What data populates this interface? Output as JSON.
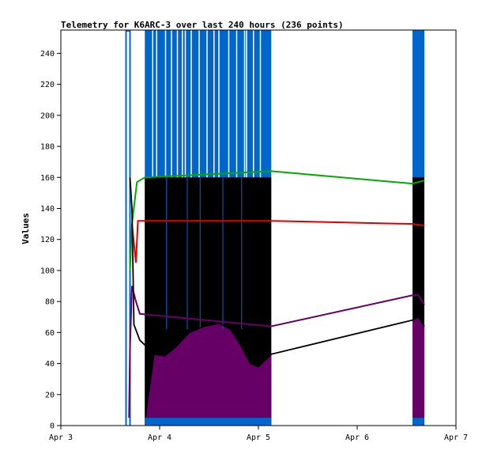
{
  "chart_data": {
    "type": "line",
    "title": "Telemetry for K6ARC-3 over last 240 hours (236 points)",
    "xlabel": "",
    "ylabel": "Values",
    "ylim": [
      0,
      255
    ],
    "xlim": [
      "Apr 3",
      "Apr 7"
    ],
    "y_ticks": [
      0,
      20,
      40,
      60,
      80,
      100,
      120,
      140,
      160,
      180,
      200,
      220,
      240
    ],
    "x_ticks": [
      "Apr 3",
      "Apr 4",
      "Apr 5",
      "Apr 6",
      "Apr 7"
    ],
    "grid": false,
    "colors": {
      "blue": "#0066cc",
      "black": "#000000",
      "purple": "#660066",
      "green": "#00aa00",
      "red": "#dd0000",
      "steelblue": "#0066cc"
    },
    "series": [
      {
        "color": "#0066cc",
        "segments": [
          [
            [
              3.66,
              0
            ],
            [
              3.66,
              255
            ],
            [
              3.7,
              255
            ],
            [
              3.7,
              0
            ]
          ],
          [
            [
              3.85,
              5
            ],
            [
              3.85,
              255
            ],
            [
              5.13,
              255
            ],
            [
              5.13,
              5
            ]
          ],
          [
            [
              6.56,
              5
            ],
            [
              6.56,
              255
            ],
            [
              6.68,
              255
            ],
            [
              6.68,
              5
            ]
          ]
        ],
        "band_low": [
          [
            3.85,
            0
          ],
          [
            5.13,
            5
          ]
        ],
        "band_low2": [
          [
            6.56,
            0
          ],
          [
            6.68,
            5
          ]
        ]
      },
      {
        "color": "#000000",
        "points": [
          [
            3.7,
            160
          ],
          [
            3.72,
            140
          ],
          [
            3.74,
            65
          ],
          [
            3.8,
            55
          ],
          [
            3.95,
            46
          ],
          [
            4.05,
            45
          ],
          [
            4.15,
            50
          ],
          [
            4.3,
            60
          ],
          [
            4.45,
            64
          ],
          [
            4.6,
            66
          ],
          [
            4.72,
            62
          ],
          [
            4.82,
            52
          ],
          [
            4.92,
            40
          ],
          [
            5.0,
            38
          ],
          [
            5.13,
            46
          ],
          [
            6.56,
            68
          ],
          [
            6.62,
            70
          ],
          [
            6.68,
            64
          ]
        ],
        "band": [
          [
            3.85,
            160
          ],
          [
            5.13,
            160
          ]
        ],
        "band2": [
          [
            6.56,
            160
          ],
          [
            6.68,
            160
          ]
        ]
      },
      {
        "color": "#660066",
        "points": [
          [
            3.69,
            5
          ],
          [
            3.7,
            50
          ],
          [
            3.72,
            90
          ],
          [
            3.76,
            80
          ],
          [
            3.8,
            72
          ],
          [
            5.13,
            64
          ],
          [
            6.56,
            84
          ],
          [
            6.62,
            84
          ],
          [
            6.68,
            78
          ]
        ]
      },
      {
        "color": "#00aa00",
        "points": [
          [
            3.7,
            100
          ],
          [
            3.72,
            130
          ],
          [
            3.77,
            157
          ],
          [
            3.85,
            160
          ],
          [
            5.13,
            164
          ],
          [
            6.56,
            156
          ],
          [
            6.68,
            158
          ]
        ]
      },
      {
        "color": "#dd0000",
        "points": [
          [
            3.72,
            130
          ],
          [
            3.76,
            105
          ],
          [
            3.78,
            132
          ],
          [
            3.85,
            132
          ],
          [
            5.13,
            132
          ],
          [
            6.56,
            130
          ],
          [
            6.68,
            129
          ]
        ]
      }
    ]
  }
}
